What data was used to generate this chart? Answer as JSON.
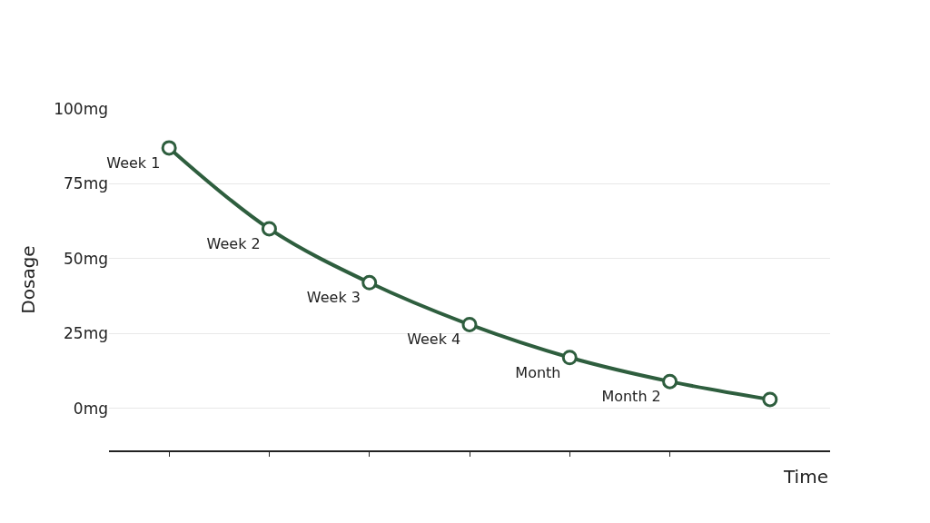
{
  "chart_data": {
    "type": "line",
    "xlabel": "Time",
    "ylabel": "Dosage",
    "categories": [
      "Week 1",
      "Week 2",
      "Week 3",
      "Week 4",
      "Month",
      "Month 2",
      null
    ],
    "series": [
      {
        "color": "#2e5e3e",
        "values": [
          87,
          60,
          42,
          28,
          17,
          9,
          3
        ]
      }
    ],
    "ylim": [
      -14,
      100
    ],
    "yticks": [
      {
        "value": 0,
        "label": "0mg"
      },
      {
        "value": 25,
        "label": "25mg"
      },
      {
        "value": 50,
        "label": "50mg"
      },
      {
        "value": 75,
        "label": "75mg"
      },
      {
        "value": 100,
        "label": "100mg"
      }
    ],
    "grid": "y",
    "marker": "circle",
    "line_style": "solid",
    "tick_labels": "y"
  }
}
